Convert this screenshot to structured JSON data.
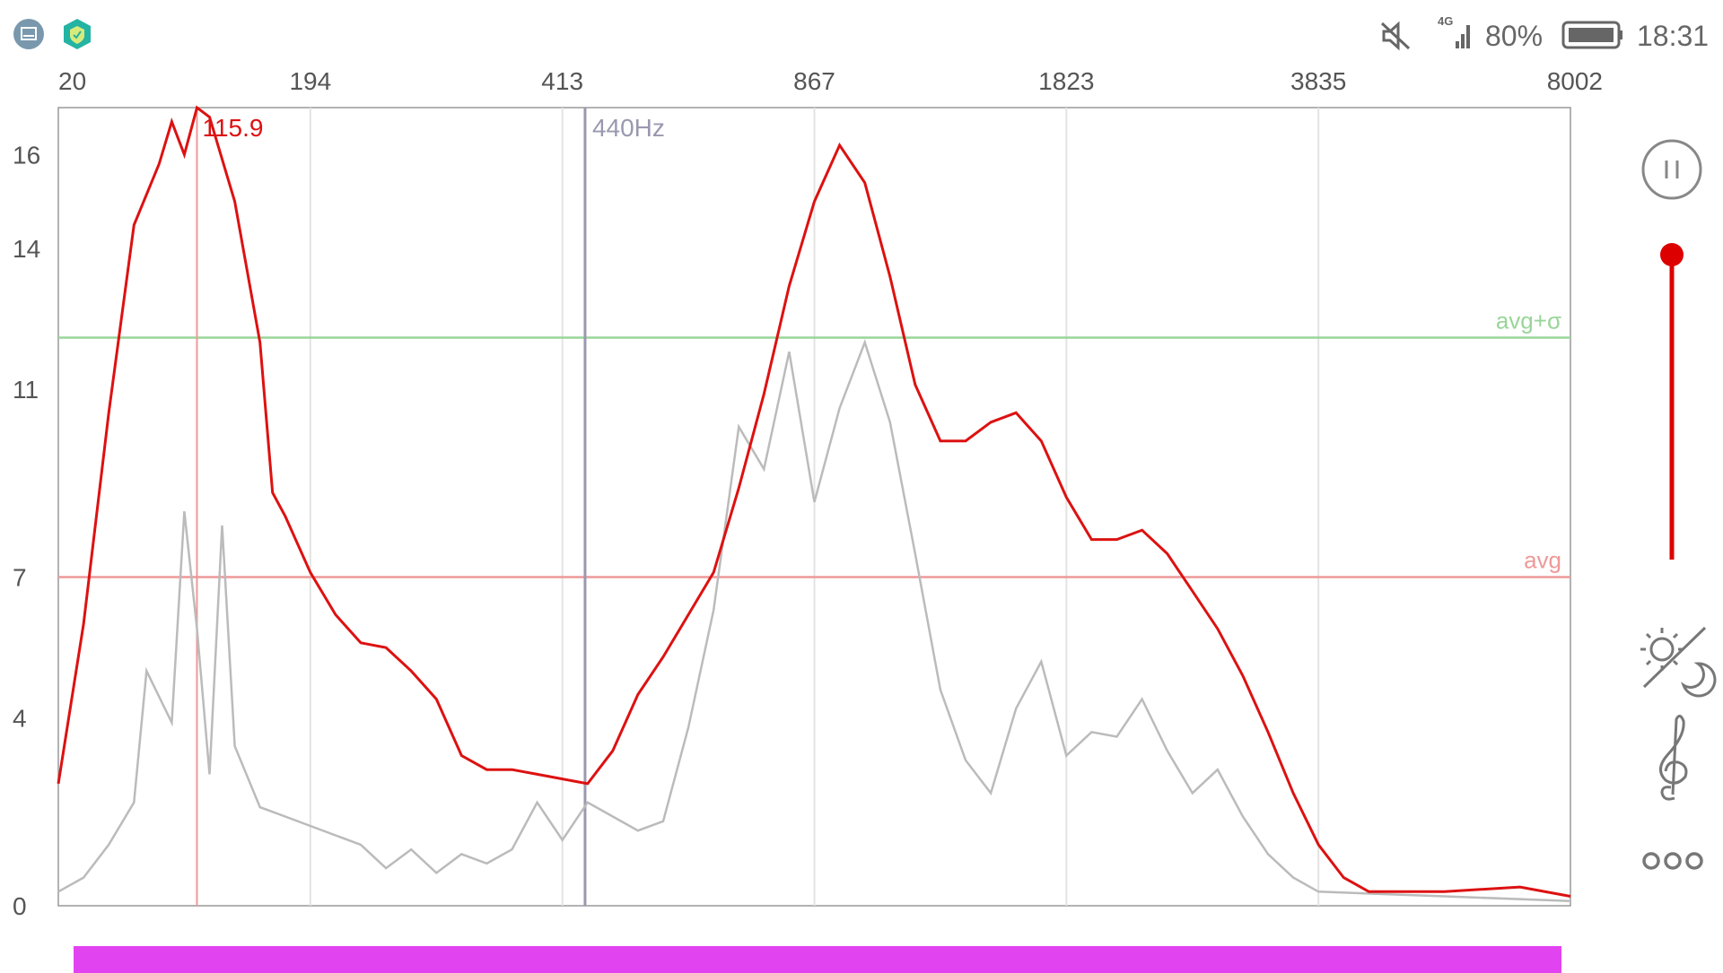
{
  "status_bar": {
    "left_icons": [
      "screenshot-icon",
      "shield-check-icon"
    ],
    "mute_icon": "speaker-muted-icon",
    "network": "4G",
    "battery_percent": "80%",
    "time": "18:31"
  },
  "spectrum": {
    "x_ticks": [
      "20",
      "194",
      "413",
      "867",
      "1823",
      "3835",
      "8002"
    ],
    "y_ticks": [
      "0",
      "4",
      "7",
      "11",
      "14",
      "16"
    ],
    "peak_label": "115.9",
    "reference_label": "440Hz",
    "avg_label": "avg",
    "avg_sigma_label": "avg+σ",
    "colors": {
      "smoothed": "#dd1111",
      "raw": "#bbbbbb",
      "avg": "#ee9999",
      "avg_sigma": "#99d599",
      "reference": "#9a98b0",
      "grid": "#e3e3e3"
    }
  },
  "chart_data": {
    "type": "line",
    "x_ticks": [
      "20",
      "194",
      "413",
      "867",
      "1823",
      "3835",
      "8002"
    ],
    "y_ticks": [
      0,
      4,
      7,
      11,
      14,
      16
    ],
    "ylim": [
      0,
      17
    ],
    "avg_level": 7,
    "avg_sigma_level": 12.1,
    "peak": {
      "x_tick_position": 0.55,
      "y": 17
    },
    "reference_x_tick_position": 2.09,
    "series": [
      {
        "values_smoothed": [
          [
            0.0,
            2.6
          ],
          [
            0.1,
            6.0
          ],
          [
            0.2,
            10.5
          ],
          [
            0.3,
            14.5
          ],
          [
            0.4,
            15.8
          ],
          [
            0.45,
            16.7
          ],
          [
            0.5,
            16.0
          ],
          [
            0.55,
            17.0
          ],
          [
            0.6,
            16.8
          ],
          [
            0.7,
            15.0
          ],
          [
            0.8,
            12.0
          ],
          [
            0.85,
            8.8
          ],
          [
            0.9,
            8.3
          ],
          [
            1.0,
            7.1
          ],
          [
            1.1,
            6.2
          ],
          [
            1.2,
            5.6
          ],
          [
            1.3,
            5.5
          ],
          [
            1.4,
            5.0
          ],
          [
            1.5,
            4.4
          ],
          [
            1.6,
            3.2
          ],
          [
            1.7,
            2.9
          ],
          [
            1.8,
            2.9
          ],
          [
            1.9,
            2.8
          ],
          [
            2.0,
            2.7
          ],
          [
            2.1,
            2.6
          ],
          [
            2.2,
            3.3
          ],
          [
            2.3,
            4.5
          ],
          [
            2.4,
            5.3
          ],
          [
            2.5,
            6.2
          ],
          [
            2.6,
            7.1
          ],
          [
            2.7,
            8.9
          ],
          [
            2.8,
            10.9
          ],
          [
            2.9,
            13.2
          ],
          [
            3.0,
            15.0
          ],
          [
            3.1,
            16.2
          ],
          [
            3.2,
            15.4
          ],
          [
            3.3,
            13.4
          ],
          [
            3.4,
            11.1
          ],
          [
            3.5,
            9.9
          ],
          [
            3.6,
            9.9
          ],
          [
            3.7,
            10.3
          ],
          [
            3.8,
            10.5
          ],
          [
            3.9,
            9.9
          ],
          [
            4.0,
            8.7
          ],
          [
            4.1,
            7.8
          ],
          [
            4.2,
            7.8
          ],
          [
            4.3,
            8.0
          ],
          [
            4.4,
            7.5
          ],
          [
            4.5,
            6.7
          ],
          [
            4.6,
            5.9
          ],
          [
            4.7,
            4.9
          ],
          [
            4.8,
            3.7
          ],
          [
            4.9,
            2.4
          ],
          [
            5.0,
            1.3
          ],
          [
            5.1,
            0.6
          ],
          [
            5.2,
            0.3
          ],
          [
            5.5,
            0.3
          ],
          [
            5.8,
            0.4
          ],
          [
            6.0,
            0.2
          ]
        ]
      },
      {
        "values_raw": [
          [
            0.0,
            0.3
          ],
          [
            0.1,
            0.6
          ],
          [
            0.2,
            1.3
          ],
          [
            0.3,
            2.2
          ],
          [
            0.35,
            5.0
          ],
          [
            0.45,
            3.9
          ],
          [
            0.5,
            8.4
          ],
          [
            0.55,
            5.9
          ],
          [
            0.6,
            2.8
          ],
          [
            0.65,
            8.1
          ],
          [
            0.7,
            3.4
          ],
          [
            0.8,
            2.1
          ],
          [
            0.9,
            1.9
          ],
          [
            1.0,
            1.7
          ],
          [
            1.1,
            1.5
          ],
          [
            1.2,
            1.3
          ],
          [
            1.3,
            0.8
          ],
          [
            1.4,
            1.2
          ],
          [
            1.5,
            0.7
          ],
          [
            1.6,
            1.1
          ],
          [
            1.7,
            0.9
          ],
          [
            1.8,
            1.2
          ],
          [
            1.9,
            2.2
          ],
          [
            2.0,
            1.4
          ],
          [
            2.1,
            2.2
          ],
          [
            2.2,
            1.9
          ],
          [
            2.3,
            1.6
          ],
          [
            2.4,
            1.8
          ],
          [
            2.5,
            3.8
          ],
          [
            2.6,
            6.3
          ],
          [
            2.7,
            10.2
          ],
          [
            2.8,
            9.3
          ],
          [
            2.9,
            11.8
          ],
          [
            3.0,
            8.6
          ],
          [
            3.1,
            10.6
          ],
          [
            3.2,
            12.0
          ],
          [
            3.3,
            10.3
          ],
          [
            3.4,
            7.5
          ],
          [
            3.5,
            4.6
          ],
          [
            3.6,
            3.1
          ],
          [
            3.7,
            2.4
          ],
          [
            3.8,
            4.2
          ],
          [
            3.9,
            5.2
          ],
          [
            4.0,
            3.2
          ],
          [
            4.1,
            3.7
          ],
          [
            4.2,
            3.6
          ],
          [
            4.3,
            4.4
          ],
          [
            4.4,
            3.3
          ],
          [
            4.5,
            2.4
          ],
          [
            4.6,
            2.9
          ],
          [
            4.7,
            1.9
          ],
          [
            4.8,
            1.1
          ],
          [
            4.9,
            0.6
          ],
          [
            5.0,
            0.3
          ],
          [
            5.5,
            0.2
          ],
          [
            6.0,
            0.1
          ]
        ]
      }
    ]
  },
  "sidebar": {
    "pause_icon": "pause-icon",
    "volume_level": 1.0,
    "theme_icon": "sun-moon-icon",
    "music_icon": "treble-clef-icon",
    "more_icon": "more-dots-icon"
  }
}
